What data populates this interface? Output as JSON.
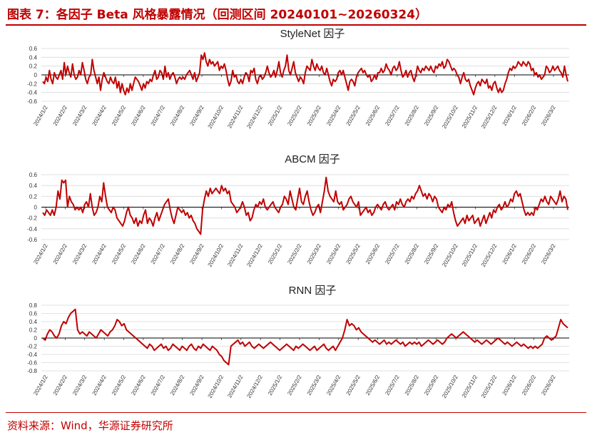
{
  "header": {
    "title": "图表 7：各因子 Beta 风格暴露情况（回测区间 20240101~20260324）"
  },
  "footer": {
    "source": "资料来源：Wind，华源证券研究所"
  },
  "colors": {
    "accent": "#c00000",
    "line": "#c00000",
    "grid": "#d9d9d9"
  },
  "x_tick_labels": [
    "2024/1/2",
    "2024/2/2",
    "2024/3/2",
    "2024/4/2",
    "2024/5/2",
    "2024/6/2",
    "2024/7/2",
    "2024/8/2",
    "2024/9/2",
    "2024/10/2",
    "2024/11/2",
    "2024/12/2",
    "2025/1/2",
    "2025/2/2",
    "2025/3/2",
    "2025/4/2",
    "2025/5/2",
    "2025/6/2",
    "2025/7/2",
    "2025/8/2",
    "2025/9/2",
    "2025/10/2",
    "2025/11/2",
    "2025/12/2",
    "2026/1/2",
    "2026/2/2",
    "2026/3/2"
  ],
  "chart_data": [
    {
      "type": "line",
      "title": "StyleNet 因子",
      "ylim": [
        -0.6,
        0.6
      ],
      "yticks": [
        "0.6",
        "0.4",
        "0.2",
        "0",
        "-0.2",
        "-0.4",
        "-0.6"
      ],
      "grid": true,
      "series": [
        {
          "values": [
            -0.15,
            -0.2,
            -0.05,
            -0.15,
            0.1,
            -0.1,
            -0.2,
            0.05,
            -0.05,
            -0.1,
            0.0,
            0.1,
            -0.1,
            0.28,
            0.0,
            0.2,
            0.05,
            -0.05,
            0.25,
            0.0,
            -0.1,
            -0.05,
            0.1,
            0.0,
            0.28,
            0.1,
            -0.1,
            -0.2,
            -0.05,
            0.0,
            0.35,
            0.1,
            -0.05,
            -0.2,
            -0.05,
            -0.35,
            -0.1,
            0.05,
            -0.05,
            -0.15,
            -0.2,
            -0.05,
            -0.15,
            -0.2,
            -0.05,
            -0.3,
            -0.15,
            -0.4,
            -0.2,
            -0.35,
            -0.45,
            -0.3,
            -0.4,
            -0.2,
            -0.35,
            -0.2,
            -0.05,
            -0.1,
            -0.15,
            -0.25,
            -0.35,
            -0.2,
            -0.3,
            -0.15,
            -0.2,
            -0.1,
            -0.15,
            0.0,
            0.1,
            -0.1,
            -0.05,
            0.1,
            0.05,
            -0.1,
            0.2,
            -0.05,
            0.05,
            -0.1,
            0.0,
            0.05,
            -0.05,
            -0.2,
            -0.1,
            -0.05,
            -0.1,
            -0.05,
            -0.1,
            0.0,
            0.05,
            0.1,
            0.0,
            -0.1,
            0.05,
            -0.15,
            -0.05,
            0.05,
            0.45,
            0.35,
            0.5,
            0.3,
            0.2,
            0.35,
            0.25,
            0.3,
            0.2,
            0.25,
            0.3,
            0.1,
            0.2,
            0.15,
            0.25,
            0.1,
            -0.1,
            -0.25,
            -0.15,
            0.1,
            -0.05,
            0.0,
            -0.15,
            -0.2,
            -0.1,
            -0.2,
            -0.05,
            0.05,
            0.0,
            -0.15,
            0.1,
            0.05,
            0.15,
            -0.1,
            -0.2,
            -0.05,
            0.0,
            -0.1,
            -0.05,
            0.05,
            0.2,
            0.05,
            -0.05,
            0.0,
            0.1,
            -0.05,
            0.1,
            0.3,
            0.05,
            -0.05,
            0.1,
            0.2,
            0.45,
            0.1,
            0.0,
            0.15,
            0.3,
            0.05,
            -0.05,
            -0.15,
            -0.05,
            -0.1,
            -0.2,
            0.05,
            0.2,
            0.15,
            0.1,
            0.35,
            0.2,
            0.1,
            0.25,
            0.15,
            0.1,
            0.2,
            0.05,
            0.0,
            0.15,
            0.0,
            -0.15,
            -0.25,
            -0.1,
            -0.15,
            -0.1,
            0.05,
            0.1,
            0.0,
            0.1,
            -0.05,
            -0.2,
            -0.35,
            -0.15,
            -0.1,
            -0.15,
            -0.25,
            -0.05,
            0.05,
            0.1,
            0.15,
            0.05,
            0.1,
            0.0,
            -0.05,
            0.0,
            -0.15,
            -0.1,
            0.0,
            -0.1,
            0.05,
            0.05,
            0.15,
            0.05,
            0.1,
            0.25,
            0.15,
            0.1,
            0.0,
            0.15,
            0.2,
            0.1,
            0.15,
            0.3,
            0.1,
            -0.05,
            0.0,
            0.1,
            -0.05,
            0.05,
            0.1,
            -0.05,
            -0.15,
            0.0,
            0.2,
            0.1,
            0.05,
            0.15,
            0.1,
            0.2,
            0.15,
            0.1,
            0.2,
            0.1,
            0.05,
            0.2,
            0.15,
            0.25,
            0.2,
            0.3,
            0.15,
            0.2,
            0.35,
            0.3,
            0.2,
            0.1,
            0.15,
            0.1,
            0.0,
            -0.05,
            -0.2,
            -0.05,
            0.05,
            -0.1,
            -0.15,
            -0.1,
            -0.25,
            -0.35,
            -0.45,
            -0.3,
            -0.2,
            -0.15,
            -0.25,
            -0.1,
            -0.15,
            -0.2,
            -0.1,
            -0.3,
            -0.25,
            -0.35,
            -0.2,
            -0.15,
            -0.3,
            -0.4,
            -0.3,
            -0.4,
            -0.35,
            -0.2,
            -0.1,
            0.05,
            0.15,
            0.1,
            0.2,
            0.15,
            0.2,
            0.3,
            0.25,
            0.2,
            0.3,
            0.25,
            0.2,
            0.3,
            0.25,
            0.1,
            0.15,
            0.0,
            0.05,
            -0.05,
            0.0,
            -0.1,
            -0.05,
            0.0,
            0.2,
            0.15,
            0.05,
            0.1,
            0.2,
            0.1,
            0.15,
            0.2,
            0.1,
            0.05,
            -0.05,
            0.2,
            0.0,
            -0.15
          ]
        }
      ]
    },
    {
      "type": "line",
      "title": "ABCM 因子",
      "ylim": [
        -0.6,
        0.6
      ],
      "yticks": [
        "0.6",
        "0.4",
        "0.2",
        "0",
        "-0.2",
        "-0.4",
        "-0.6"
      ],
      "grid": true,
      "series": [
        {
          "values": [
            -0.1,
            -0.15,
            -0.05,
            -0.1,
            -0.15,
            -0.05,
            -0.15,
            0.0,
            0.3,
            0.15,
            0.5,
            0.45,
            0.5,
            0.0,
            0.2,
            0.1,
            0.05,
            -0.05,
            0.0,
            -0.05,
            0.0,
            -0.1,
            0.05,
            0.1,
            0.0,
            0.25,
            0.0,
            -0.15,
            -0.1,
            0.0,
            0.2,
            0.1,
            0.45,
            0.2,
            0.0,
            -0.05,
            -0.1,
            0.0,
            -0.05,
            -0.2,
            -0.25,
            -0.3,
            -0.35,
            -0.25,
            -0.1,
            0.0,
            -0.15,
            -0.2,
            -0.3,
            -0.2,
            -0.35,
            -0.25,
            -0.3,
            -0.15,
            -0.05,
            -0.3,
            -0.2,
            -0.25,
            -0.35,
            -0.2,
            -0.1,
            -0.25,
            -0.15,
            -0.05,
            0.05,
            0.1,
            0.15,
            -0.05,
            -0.2,
            -0.3,
            -0.15,
            0.0,
            -0.05,
            -0.1,
            -0.05,
            -0.15,
            -0.1,
            -0.2,
            -0.15,
            -0.25,
            -0.3,
            -0.4,
            -0.45,
            -0.5,
            -0.05,
            0.15,
            0.3,
            0.2,
            0.35,
            0.25,
            0.3,
            0.35,
            0.3,
            0.25,
            0.4,
            0.3,
            0.35,
            0.25,
            0.3,
            0.1,
            0.05,
            0.0,
            -0.1,
            -0.05,
            0.0,
            0.1,
            0.0,
            -0.15,
            -0.1,
            -0.25,
            -0.2,
            -0.05,
            0.05,
            0.0,
            0.1,
            0.05,
            0.15,
            0.0,
            -0.05,
            0.0,
            0.05,
            0.1,
            0.0,
            -0.05,
            -0.1,
            0.0,
            0.05,
            0.2,
            0.15,
            0.05,
            0.3,
            0.15,
            0.0,
            -0.05,
            0.15,
            0.35,
            0.1,
            0.05,
            0.2,
            0.3,
            0.1,
            -0.05,
            -0.15,
            -0.1,
            0.0,
            0.05,
            -0.1,
            0.1,
            0.3,
            0.55,
            0.3,
            0.2,
            0.15,
            0.1,
            0.3,
            0.1,
            0.05,
            0.1,
            -0.05,
            0.0,
            0.05,
            0.15,
            0.2,
            0.1,
            0.05,
            0.0,
            0.1,
            -0.15,
            -0.1,
            -0.05,
            0.0,
            -0.1,
            -0.05,
            -0.15,
            -0.1,
            0.0,
            0.05,
            0.0,
            -0.05,
            0.05,
            0.1,
            0.0,
            -0.05,
            0.0,
            0.05,
            -0.05,
            0.1,
            0.05,
            0.15,
            0.05,
            0.0,
            0.1,
            0.15,
            0.1,
            0.2,
            0.15,
            0.25,
            0.3,
            0.4,
            0.3,
            0.2,
            0.25,
            0.15,
            0.25,
            0.2,
            0.1,
            0.2,
            0.15,
            0.0,
            -0.05,
            -0.1,
            0.0,
            -0.05,
            0.05,
            0.0,
            0.1,
            -0.1,
            -0.25,
            -0.35,
            -0.3,
            -0.25,
            -0.2,
            -0.3,
            -0.15,
            -0.25,
            -0.2,
            -0.15,
            -0.3,
            -0.25,
            -0.2,
            -0.35,
            -0.25,
            -0.15,
            -0.3,
            -0.2,
            -0.1,
            -0.2,
            -0.05,
            -0.1,
            0.0,
            0.05,
            -0.05,
            0.0,
            0.1,
            0.0,
            0.05,
            0.15,
            0.1,
            0.25,
            0.3,
            0.2,
            0.25,
            0.1,
            -0.05,
            -0.15,
            -0.1,
            -0.15,
            -0.1,
            -0.15,
            0.0,
            -0.05,
            0.05,
            0.15,
            0.1,
            0.2,
            0.1,
            0.05,
            0.2,
            0.15,
            0.1,
            0.05,
            0.15,
            0.3,
            0.1,
            0.2,
            0.15,
            -0.05
          ]
        }
      ]
    },
    {
      "type": "line",
      "title": "RNN 因子",
      "ylim": [
        -0.8,
        0.8
      ],
      "yticks": [
        "0.8",
        "0.6",
        "0.4",
        "0.2",
        "0",
        "-0.2",
        "-0.4",
        "-0.6",
        "-0.8"
      ],
      "grid": true,
      "series": [
        {
          "values": [
            0.0,
            -0.05,
            0.1,
            0.2,
            0.15,
            0.05,
            0.0,
            0.1,
            0.3,
            0.4,
            0.35,
            0.5,
            0.6,
            0.65,
            0.7,
            0.2,
            0.1,
            0.15,
            0.1,
            0.05,
            0.15,
            0.1,
            0.05,
            0.0,
            0.1,
            0.2,
            0.15,
            0.1,
            0.05,
            0.15,
            0.2,
            0.3,
            0.45,
            0.4,
            0.3,
            0.35,
            0.2,
            0.15,
            0.1,
            0.05,
            0.0,
            -0.05,
            -0.1,
            -0.15,
            -0.2,
            -0.25,
            -0.15,
            -0.2,
            -0.3,
            -0.25,
            -0.2,
            -0.15,
            -0.25,
            -0.2,
            -0.3,
            -0.25,
            -0.15,
            -0.2,
            -0.25,
            -0.3,
            -0.2,
            -0.25,
            -0.3,
            -0.2,
            -0.15,
            -0.25,
            -0.3,
            -0.2,
            -0.25,
            -0.15,
            -0.2,
            -0.25,
            -0.3,
            -0.2,
            -0.25,
            -0.3,
            -0.4,
            -0.45,
            -0.55,
            -0.6,
            -0.65,
            -0.2,
            -0.15,
            -0.1,
            -0.05,
            -0.15,
            -0.1,
            -0.2,
            -0.15,
            -0.1,
            -0.2,
            -0.25,
            -0.2,
            -0.15,
            -0.2,
            -0.25,
            -0.2,
            -0.15,
            -0.1,
            -0.15,
            -0.2,
            -0.25,
            -0.3,
            -0.25,
            -0.2,
            -0.15,
            -0.2,
            -0.25,
            -0.3,
            -0.2,
            -0.25,
            -0.2,
            -0.15,
            -0.2,
            -0.25,
            -0.3,
            -0.25,
            -0.2,
            -0.3,
            -0.25,
            -0.2,
            -0.15,
            -0.25,
            -0.3,
            -0.25,
            -0.2,
            -0.3,
            -0.2,
            -0.1,
            0.0,
            0.2,
            0.45,
            0.3,
            0.35,
            0.3,
            0.2,
            0.25,
            0.15,
            0.1,
            0.05,
            0.0,
            -0.05,
            -0.1,
            -0.05,
            -0.1,
            -0.15,
            -0.1,
            -0.05,
            -0.15,
            -0.1,
            -0.15,
            -0.1,
            -0.05,
            -0.1,
            -0.15,
            -0.1,
            -0.2,
            -0.15,
            -0.1,
            -0.15,
            -0.1,
            -0.15,
            -0.1,
            -0.2,
            -0.15,
            -0.1,
            -0.05,
            -0.1,
            -0.15,
            -0.1,
            -0.05,
            -0.1,
            -0.15,
            -0.1,
            0.0,
            0.05,
            0.1,
            0.05,
            0.0,
            0.05,
            0.1,
            0.15,
            0.1,
            0.05,
            0.0,
            -0.05,
            -0.1,
            -0.05,
            -0.1,
            -0.15,
            -0.1,
            -0.05,
            -0.1,
            -0.15,
            -0.1,
            -0.05,
            0.0,
            -0.05,
            -0.1,
            -0.15,
            -0.1,
            -0.15,
            -0.2,
            -0.15,
            -0.1,
            -0.15,
            -0.2,
            -0.15,
            -0.2,
            -0.25,
            -0.2,
            -0.25,
            -0.2,
            -0.25,
            -0.2,
            -0.15,
            0.0,
            0.05,
            0.0,
            -0.05,
            0.0,
            0.05,
            0.25,
            0.45,
            0.35,
            0.3,
            0.25
          ]
        }
      ]
    }
  ]
}
